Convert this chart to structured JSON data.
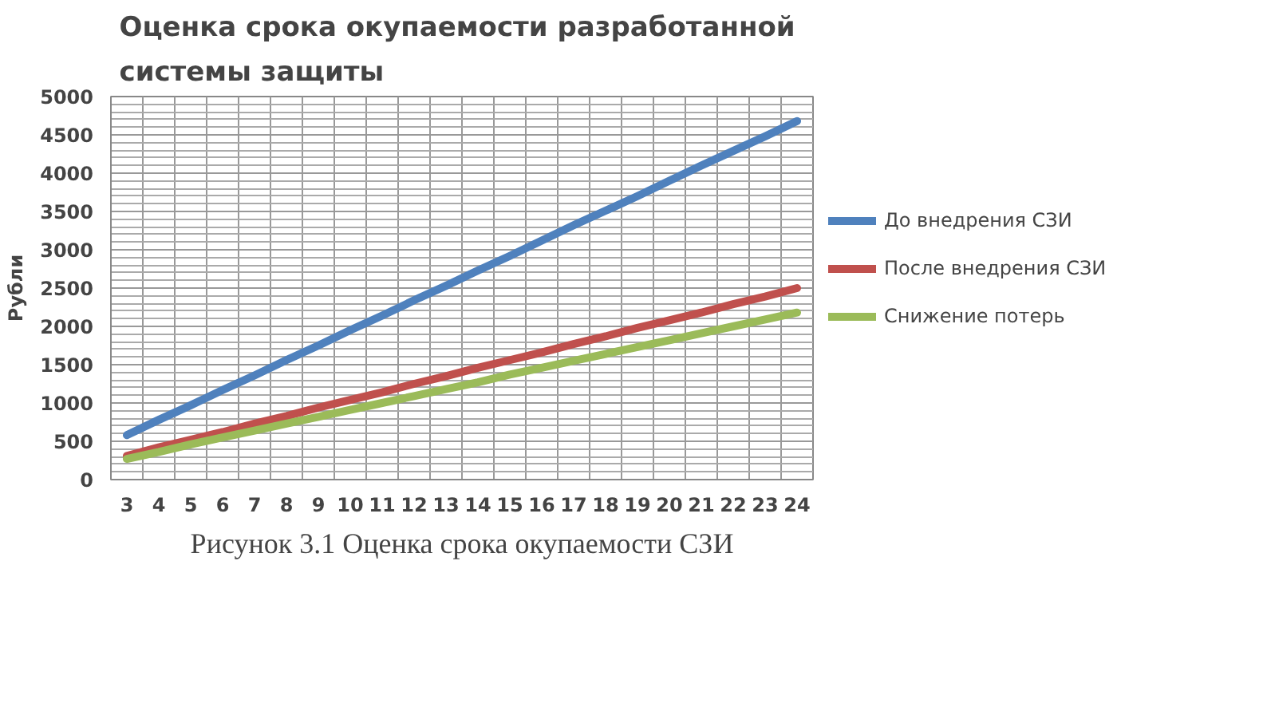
{
  "chart_data": {
    "type": "line",
    "title": "Оценка  срока окупаемости разработанной системы защиты",
    "ylabel": "Рубли",
    "categories": [
      "3",
      "4",
      "5",
      "6",
      "7",
      "8",
      "9",
      "10",
      "11",
      "12",
      "13",
      "14",
      "15",
      "16",
      "17",
      "18",
      "19",
      "20",
      "21",
      "22",
      "23",
      "24"
    ],
    "series": [
      {
        "name": "До внедрения СЗИ",
        "color": "#4f81bd",
        "values": [
          580,
          780,
          970,
          1170,
          1360,
          1560,
          1750,
          1950,
          2140,
          2340,
          2530,
          2730,
          2920,
          3120,
          3320,
          3510,
          3700,
          3900,
          4100,
          4290,
          4480,
          4680
        ]
      },
      {
        "name": "После внедрения СЗИ",
        "color": "#c0504d",
        "values": [
          310,
          420,
          520,
          620,
          730,
          830,
          940,
          1040,
          1140,
          1250,
          1350,
          1460,
          1560,
          1660,
          1770,
          1870,
          1980,
          2080,
          2180,
          2290,
          2390,
          2500
        ]
      },
      {
        "name": "Снижение потерь",
        "color": "#9bbb59",
        "values": [
          270,
          360,
          460,
          550,
          640,
          730,
          820,
          910,
          1000,
          1090,
          1180,
          1270,
          1370,
          1460,
          1550,
          1640,
          1730,
          1820,
          1910,
          2000,
          2090,
          2180
        ]
      }
    ],
    "ylim": [
      0,
      5000
    ],
    "yticks": [
      0,
      500,
      1000,
      1500,
      2000,
      2500,
      3000,
      3500,
      4000,
      4500,
      5000
    ],
    "grid": true,
    "legend": "right",
    "marker": "none",
    "line_style": "solid",
    "annotations": [
      "Рисунок 3.1 Оценка срока окупаемости СЗИ"
    ]
  }
}
